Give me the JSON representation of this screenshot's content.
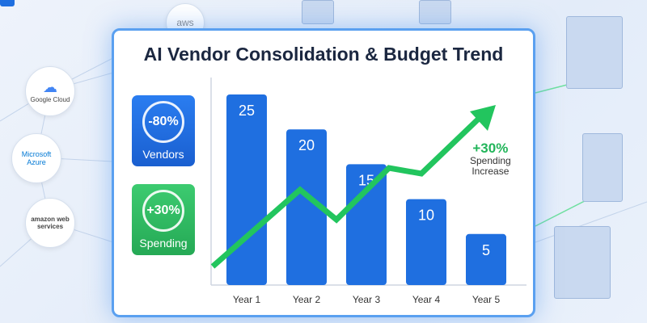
{
  "vendors": {
    "google": "Google Cloud",
    "azure": "Microsoft Azure",
    "amazon": "amazon web services",
    "aws": "aws"
  },
  "cards": [
    {
      "value": "-80%",
      "label": "Vendors",
      "color": "#1f6fe0"
    },
    {
      "value": "+30%",
      "label": "Spending",
      "color": "#2fbf62"
    }
  ],
  "annotation": {
    "value": "+30%",
    "line1": "Spending",
    "line2": "Increase"
  },
  "chart_data": {
    "type": "bar",
    "title": "AI Vendor Consolidation & Budget Trend",
    "categories": [
      "Year 1",
      "Year 2",
      "Year 3",
      "Year 4",
      "Year 5"
    ],
    "series": [
      {
        "name": "Vendors",
        "values": [
          25,
          20,
          15,
          10,
          5
        ],
        "color": "#1f6fe0"
      }
    ],
    "trend": {
      "name": "Spending",
      "direction": "up",
      "change": "+30%",
      "color": "#22c55e"
    },
    "xlabel": "",
    "ylabel": "",
    "ylim": [
      0,
      25
    ]
  }
}
